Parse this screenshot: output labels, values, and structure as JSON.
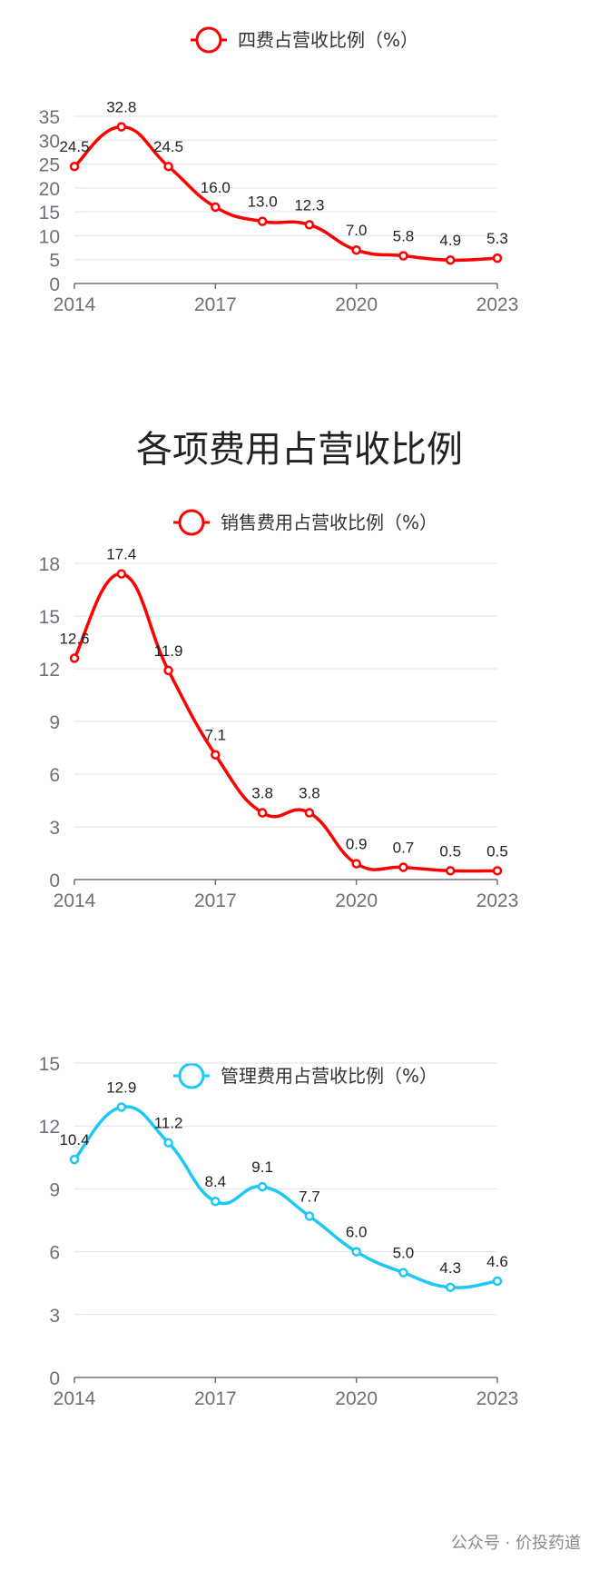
{
  "section_title": "各项费用占营收比例",
  "watermark": "公众号 · 价投药道",
  "chart_data": [
    {
      "type": "line",
      "legend": "四费占营收比例（%）",
      "color": "#ff0000",
      "x": [
        "2014",
        "2015",
        "2016",
        "2017",
        "2018",
        "2019",
        "2020",
        "2021",
        "2022",
        "2023"
      ],
      "x_tick_labels": [
        "2014",
        "2017",
        "2020",
        "2023"
      ],
      "series": [
        {
          "name": "四费占营收比例（%）",
          "values": [
            24.5,
            32.8,
            24.5,
            16.0,
            13.0,
            12.3,
            7.0,
            5.8,
            4.9,
            5.3
          ]
        }
      ],
      "data_labels": [
        "24.5",
        "32.8",
        "24.5",
        "16.0",
        "13.0",
        "12.3",
        "7.0",
        "5.8",
        "4.9",
        "5.3"
      ],
      "ylim": [
        0,
        35
      ],
      "y_ticks": [
        0,
        5,
        10,
        15,
        20,
        25,
        30,
        35
      ],
      "grid": true,
      "legend_position": "top-center"
    },
    {
      "type": "line",
      "legend": "销售费用占营收比例（%）",
      "color": "#ff0000",
      "x": [
        "2014",
        "2015",
        "2016",
        "2017",
        "2018",
        "2019",
        "2020",
        "2021",
        "2022",
        "2023"
      ],
      "x_tick_labels": [
        "2014",
        "2017",
        "2020",
        "2023"
      ],
      "series": [
        {
          "name": "销售费用占营收比例（%）",
          "values": [
            12.6,
            17.4,
            11.9,
            7.1,
            3.8,
            3.8,
            0.9,
            0.7,
            0.5,
            0.5
          ]
        }
      ],
      "data_labels": [
        "12.6",
        "17.4",
        "11.9",
        "7.1",
        "3.8",
        "3.8",
        "0.9",
        "0.7",
        "0.5",
        "0.5"
      ],
      "ylim": [
        0,
        18
      ],
      "y_ticks": [
        0,
        3,
        6,
        9,
        12,
        15,
        18
      ],
      "grid": true,
      "legend_position": "top-center"
    },
    {
      "type": "line",
      "legend": "管理费用占营收比例（%）",
      "color": "#1ec8f5",
      "x": [
        "2014",
        "2015",
        "2016",
        "2017",
        "2018",
        "2019",
        "2020",
        "2021",
        "2022",
        "2023"
      ],
      "x_tick_labels": [
        "2014",
        "2017",
        "2020",
        "2023"
      ],
      "series": [
        {
          "name": "管理费用占营收比例（%）",
          "values": [
            10.4,
            12.9,
            11.2,
            8.4,
            9.1,
            7.7,
            6.0,
            5.0,
            4.3,
            4.6
          ]
        }
      ],
      "data_labels": [
        "10.4",
        "12.9",
        "11.2",
        "8.4",
        "9.1",
        "7.7",
        "6.0",
        "5.0",
        "4.3",
        "4.6"
      ],
      "ylim": [
        0,
        15
      ],
      "y_ticks": [
        0,
        3,
        6,
        9,
        12,
        15
      ],
      "grid": true,
      "legend_position": "top-center"
    }
  ]
}
